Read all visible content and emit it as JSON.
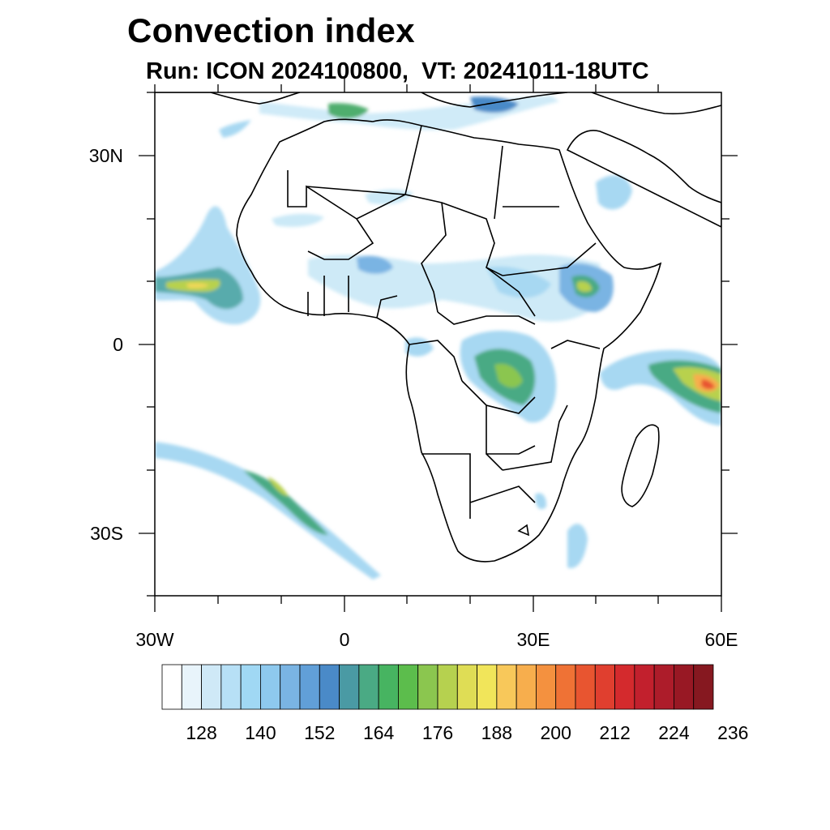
{
  "title": "Convection index",
  "subtitle": "Run: ICON 2024100800,  VT: 20241011-18UTC",
  "map": {
    "lon_range": [
      -30,
      60
    ],
    "lat_range": [
      -40,
      40
    ],
    "lon_tick_labels": [
      "30W",
      "0",
      "30E",
      "60E"
    ],
    "lat_tick_labels": [
      "30N",
      "0",
      "30S"
    ]
  },
  "colorbar": {
    "labels": [
      "128",
      "140",
      "152",
      "164",
      "176",
      "188",
      "200",
      "212",
      "224",
      "236"
    ],
    "colors": [
      "#ffffff",
      "#e8f4fb",
      "#cfe9f7",
      "#b7e0f6",
      "#a0d8f4",
      "#8ec9ee",
      "#7ab4e3",
      "#619fd8",
      "#4a8ac8",
      "#4a9aa4",
      "#4aaa84",
      "#47b461",
      "#5cbd4c",
      "#8bc64f",
      "#b6d14f",
      "#dfdd55",
      "#f1e55a",
      "#f8c85a",
      "#f7ae4d",
      "#f4913f",
      "#ef7235",
      "#e85530",
      "#e03f2f",
      "#d42a2d",
      "#c2202d",
      "#ad1c2a",
      "#981824",
      "#861820"
    ]
  }
}
